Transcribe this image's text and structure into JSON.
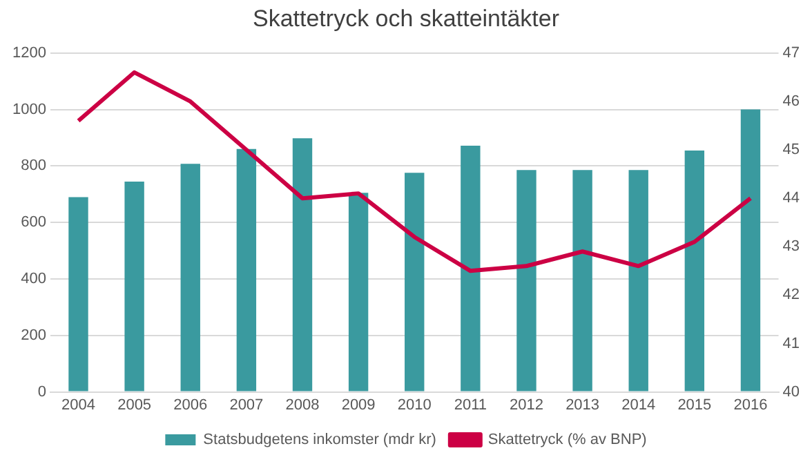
{
  "chart_data": {
    "type": "bar",
    "title": "Skattetryck och skatteintäkter",
    "categories": [
      "2004",
      "2005",
      "2006",
      "2007",
      "2008",
      "2009",
      "2010",
      "2011",
      "2012",
      "2013",
      "2014",
      "2015",
      "2016"
    ],
    "series": [
      {
        "name": "Statsbudgetens inkomster (mdr kr)",
        "color": "#3a9a9f",
        "values": [
          690,
          745,
          808,
          860,
          898,
          705,
          776,
          872,
          786,
          786,
          786,
          855,
          1000
        ]
      },
      {
        "name": "Skattetryck (% av BNP)",
        "type": "line",
        "axis": "y2",
        "color": "#cc0044",
        "values": [
          45.6,
          46.6,
          46.0,
          45.0,
          44.0,
          44.1,
          43.2,
          42.5,
          42.6,
          42.9,
          42.6,
          43.1,
          44.0
        ]
      }
    ],
    "ylim": [
      0,
      1200
    ],
    "yticks": [
      0,
      200,
      400,
      600,
      800,
      1000,
      1200
    ],
    "y2lim": [
      40,
      47
    ],
    "y2ticks": [
      40,
      41,
      42,
      43,
      44,
      45,
      46,
      47
    ],
    "grid": "y",
    "legend": "bottom",
    "marker": "none"
  }
}
